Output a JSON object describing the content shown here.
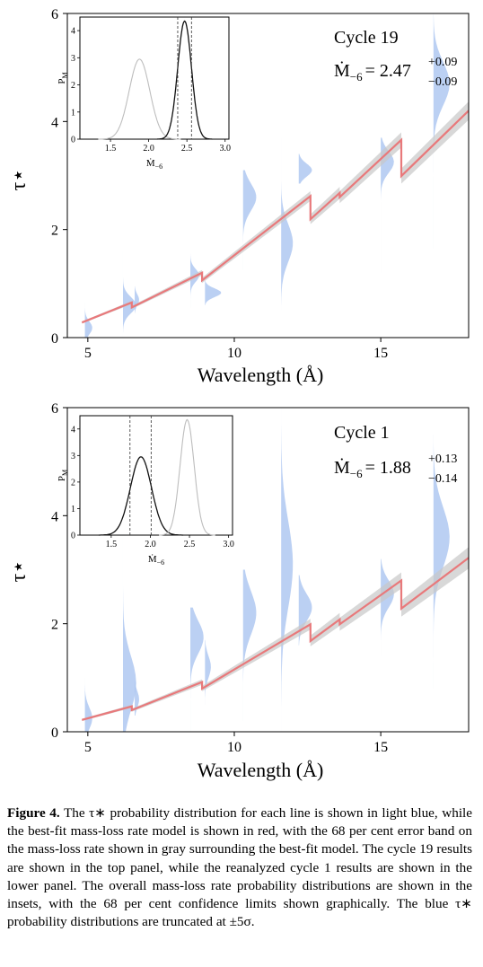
{
  "panels": [
    {
      "panel_label": "Cycle 19",
      "mdot_symbol": "Ṁ",
      "mdot_sub": "−6",
      "mdot_value": "= 2.47",
      "err_plus": "+0.09",
      "err_minus": "−0.09",
      "xlabel": "Wavelength (Å)",
      "ylabel": "τ⋆",
      "inset_xlabel": "Ṁ−6",
      "inset_ylabel": "PM"
    },
    {
      "panel_label": "Cycle 1",
      "mdot_symbol": "Ṁ",
      "mdot_sub": "−6",
      "mdot_value": "= 1.88",
      "err_plus": "+0.13",
      "err_minus": "−0.14",
      "xlabel": "Wavelength (Å)",
      "ylabel": "τ⋆",
      "inset_xlabel": "Ṁ−6",
      "inset_ylabel": "PM"
    }
  ],
  "colors": {
    "model": "#e8797b",
    "band": "#c8c8c8",
    "violin": "#aac4f0",
    "inset_other": "#bdbdbd",
    "inset_current": "#111111"
  },
  "caption": {
    "label": "Figure 4.",
    "text": " The τ∗ probability distribution for each line is shown in light blue, while the best-fit mass-loss rate model is shown in red, with the 68 per cent error band on the mass-loss rate shown in gray surrounding the best-fit model. The cycle 19 results are shown in the top panel, while the reanalyzed cycle 1 results are shown in the lower panel. The overall mass-loss rate probability distributions are shown in the insets, with the 68 per cent confidence limits shown graphically. The blue τ∗ probability distributions are truncated at ±5σ."
  },
  "chart_data": [
    {
      "type": "line",
      "title": "Cycle 19",
      "xlabel": "Wavelength (Å)",
      "ylabel": "τ⋆",
      "xlim": [
        4.3,
        18.0
      ],
      "ylim": [
        0,
        6
      ],
      "xticks": [
        5,
        10,
        15
      ],
      "yticks": [
        0,
        2,
        4,
        6
      ],
      "series": [
        {
          "name": "best-fit model",
          "x": [
            4.8,
            6.5,
            6.5,
            8.9,
            8.9,
            12.6,
            12.6,
            13.6,
            13.6,
            15.7,
            15.7,
            18.0
          ],
          "y": [
            0.28,
            0.65,
            0.56,
            1.2,
            1.06,
            2.62,
            2.19,
            2.68,
            2.6,
            3.66,
            2.99,
            4.2
          ]
        }
      ],
      "band_halfwidth": [
        0.02,
        0.03,
        0.03,
        0.05,
        0.05,
        0.09,
        0.09,
        0.11,
        0.11,
        0.14,
        0.14,
        0.17
      ],
      "violins": [
        {
          "x": 4.9,
          "ymin": 0.0,
          "ymax": 0.65,
          "width": 0.25,
          "mu": 0.18,
          "sigma": 0.12
        },
        {
          "x": 6.2,
          "ymin": 0.0,
          "ymax": 1.6,
          "width": 0.45,
          "mu": 0.6,
          "sigma": 0.15
        },
        {
          "x": 6.6,
          "ymin": 0.45,
          "ymax": 0.95,
          "width": 0.15,
          "mu": 0.7,
          "sigma": 0.1
        },
        {
          "x": 8.5,
          "ymin": 0.55,
          "ymax": 1.55,
          "width": 0.3,
          "mu": 1.15,
          "sigma": 0.12
        },
        {
          "x": 9.0,
          "ymin": 0.6,
          "ymax": 1.05,
          "width": 0.55,
          "mu": 0.83,
          "sigma": 0.08
        },
        {
          "x": 10.3,
          "ymin": 1.25,
          "ymax": 3.1,
          "width": 0.45,
          "mu": 2.6,
          "sigma": 0.25
        },
        {
          "x": 11.6,
          "ymin": 0.5,
          "ymax": 3.7,
          "width": 0.4,
          "mu": 1.75,
          "sigma": 0.35
        },
        {
          "x": 12.2,
          "ymin": 2.85,
          "ymax": 3.4,
          "width": 0.45,
          "mu": 3.1,
          "sigma": 0.12
        },
        {
          "x": 15.0,
          "ymin": 1.2,
          "ymax": 3.7,
          "width": 0.45,
          "mu": 3.25,
          "sigma": 0.2
        },
        {
          "x": 16.8,
          "ymin": 1.65,
          "ymax": 6.0,
          "width": 0.55,
          "mu": 4.7,
          "sigma": 0.4
        }
      ],
      "inset": {
        "xlabel": "Ṁ−6",
        "ylabel": "PM",
        "xlim": [
          1.1,
          3.05
        ],
        "ylim": [
          0,
          4.5
        ],
        "xticks": [
          1.5,
          2.0,
          2.5,
          3.0
        ],
        "yticks": [
          0,
          1,
          2,
          3,
          4
        ],
        "series": [
          {
            "mu": 1.88,
            "sigma": 0.135,
            "peak": 2.95,
            "role": "other"
          },
          {
            "mu": 2.47,
            "sigma": 0.09,
            "peak": 4.35,
            "role": "current"
          }
        ],
        "confidence_lines": [
          2.38,
          2.56
        ]
      }
    },
    {
      "type": "line",
      "title": "Cycle 1",
      "xlabel": "Wavelength (Å)",
      "ylabel": "τ⋆",
      "xlim": [
        4.3,
        18.0
      ],
      "ylim": [
        0,
        6
      ],
      "xticks": [
        5,
        10,
        15
      ],
      "yticks": [
        0,
        2,
        4,
        6
      ],
      "series": [
        {
          "name": "best-fit model",
          "x": [
            4.8,
            6.5,
            6.5,
            8.9,
            8.9,
            12.6,
            12.6,
            13.6,
            13.6,
            15.7,
            15.7,
            18.0
          ],
          "y": [
            0.22,
            0.47,
            0.4,
            0.92,
            0.8,
            1.99,
            1.68,
            2.08,
            1.99,
            2.8,
            2.28,
            3.22
          ]
        }
      ],
      "band_halfwidth": [
        0.02,
        0.03,
        0.03,
        0.05,
        0.05,
        0.1,
        0.1,
        0.12,
        0.12,
        0.15,
        0.15,
        0.2
      ],
      "violins": [
        {
          "x": 4.9,
          "ymin": 0.0,
          "ymax": 1.0,
          "width": 0.25,
          "mu": 0.25,
          "sigma": 0.2
        },
        {
          "x": 6.2,
          "ymin": 0.0,
          "ymax": 6.0,
          "width": 0.45,
          "mu": 0.9,
          "sigma": 0.5
        },
        {
          "x": 6.6,
          "ymin": 0.3,
          "ymax": 1.0,
          "width": 0.15,
          "mu": 0.6,
          "sigma": 0.15
        },
        {
          "x": 8.5,
          "ymin": 0.0,
          "ymax": 2.3,
          "width": 0.45,
          "mu": 1.75,
          "sigma": 0.3
        },
        {
          "x": 9.0,
          "ymin": 0.5,
          "ymax": 1.7,
          "width": 0.2,
          "mu": 1.2,
          "sigma": 0.2
        },
        {
          "x": 10.3,
          "ymin": 0.2,
          "ymax": 3.0,
          "width": 0.45,
          "mu": 2.2,
          "sigma": 0.4
        },
        {
          "x": 11.6,
          "ymin": 0.0,
          "ymax": 6.0,
          "width": 0.4,
          "mu": 3.1,
          "sigma": 0.8
        },
        {
          "x": 12.2,
          "ymin": 1.6,
          "ymax": 2.9,
          "width": 0.45,
          "mu": 2.3,
          "sigma": 0.25
        },
        {
          "x": 15.0,
          "ymin": 1.4,
          "ymax": 3.2,
          "width": 0.45,
          "mu": 2.55,
          "sigma": 0.25
        },
        {
          "x": 16.8,
          "ymin": 0.8,
          "ymax": 5.5,
          "width": 0.55,
          "mu": 3.6,
          "sigma": 0.55
        }
      ],
      "inset": {
        "xlabel": "Ṁ−6",
        "ylabel": "PM",
        "xlim": [
          1.1,
          3.05
        ],
        "ylim": [
          0,
          4.5
        ],
        "xticks": [
          1.5,
          2.0,
          2.5,
          3.0
        ],
        "yticks": [
          0,
          1,
          2,
          3,
          4
        ],
        "series": [
          {
            "mu": 1.88,
            "sigma": 0.135,
            "peak": 2.95,
            "role": "current"
          },
          {
            "mu": 2.47,
            "sigma": 0.09,
            "peak": 4.35,
            "role": "other"
          }
        ],
        "confidence_lines": [
          1.74,
          2.01
        ]
      }
    }
  ]
}
